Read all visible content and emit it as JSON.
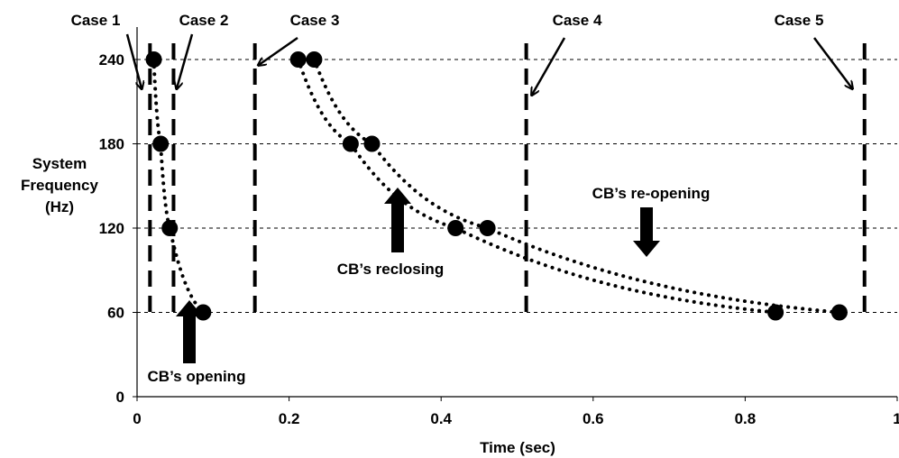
{
  "chart_data": {
    "type": "scatter",
    "xlabel": "Time (sec)",
    "ylabel_lines": [
      "System",
      "Frequency",
      "(Hz)"
    ],
    "xlim": [
      0,
      1
    ],
    "ylim": [
      0,
      270
    ],
    "x_ticks": [
      0,
      0.2,
      0.4,
      0.6,
      0.8,
      1
    ],
    "x_tick_labels": [
      "0",
      "0.2",
      "0.4",
      "0.6",
      "0.8",
      "1"
    ],
    "y_ticks": [
      0,
      60,
      120,
      180,
      240
    ],
    "y_tick_labels": [
      "0",
      "60",
      "120",
      "180",
      "240"
    ],
    "grid": "horizontal dashed",
    "series": [
      {
        "x": [
          0.022,
          0.031,
          0.043,
          0.087
        ],
        "y": [
          240,
          180,
          120,
          60
        ]
      },
      {
        "x": [
          0.212,
          0.281,
          0.419,
          0.84
        ],
        "y": [
          240,
          180,
          120,
          60
        ]
      },
      {
        "x": [
          0.233,
          0.309,
          0.461,
          0.924
        ],
        "y": [
          240,
          180,
          120,
          60
        ]
      }
    ],
    "case_lines": [
      {
        "label": "Case 1",
        "x": 0.017
      },
      {
        "label": "Case 2",
        "x": 0.048
      },
      {
        "label": "Case 3",
        "x": 0.155
      },
      {
        "label": "Case 4",
        "x": 0.512
      },
      {
        "label": "Case 5",
        "x": 0.957
      }
    ],
    "annotations": [
      {
        "text": "CB’s opening",
        "x": 0.07,
        "y": 60
      },
      {
        "text": "CB’s reclosing",
        "x": 0.345,
        "y": 165
      },
      {
        "text": "CB’s re-opening",
        "x": 0.67,
        "y": 100
      }
    ],
    "colors": {
      "line": "#000000",
      "marker": "#000000",
      "grid": "#000000"
    }
  }
}
